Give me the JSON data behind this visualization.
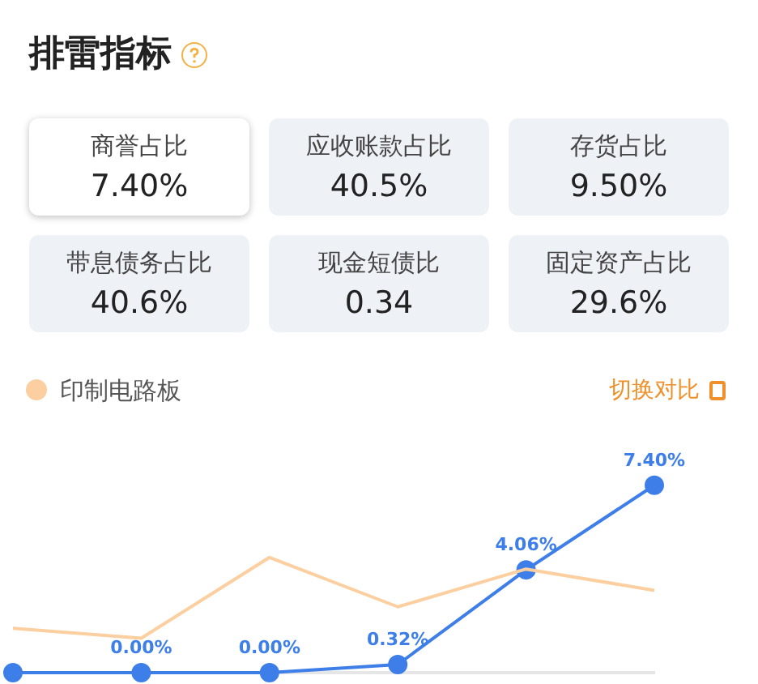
{
  "chart_data": [
    {
      "type": "other",
      "title": "排雷指标",
      "annotations": [
        "商誉占比",
        "7.40%",
        "应收账款占比",
        "40.5%",
        "存货占比",
        "9.50%",
        "带息债务占比",
        "40.6%",
        "现金短债比",
        "0.34",
        "固定资产占比",
        "29.6%"
      ]
    },
    {
      "type": "line",
      "categories": [
        null,
        null,
        null,
        null,
        null,
        null
      ],
      "tick_labels": false,
      "grid": false,
      "legend": "top left",
      "annotations": [
        "切换对比"
      ],
      "series": [
        {
          "color": "#3d7ee8",
          "marker": "circle",
          "values": [
            0,
            0,
            0,
            0.32,
            4.06,
            7.4
          ],
          "value_labels": [
            null,
            "0.00%",
            "0.00%",
            "0.32%",
            "4.06%",
            "7.40%"
          ]
        },
        {
          "name": "印制电路板",
          "color": "#fbcf9f",
          "marker": "none",
          "values": [
            1.75,
            1.36,
            4.55,
            2.6,
            4.09,
            3.25
          ]
        }
      ]
    }
  ]
}
